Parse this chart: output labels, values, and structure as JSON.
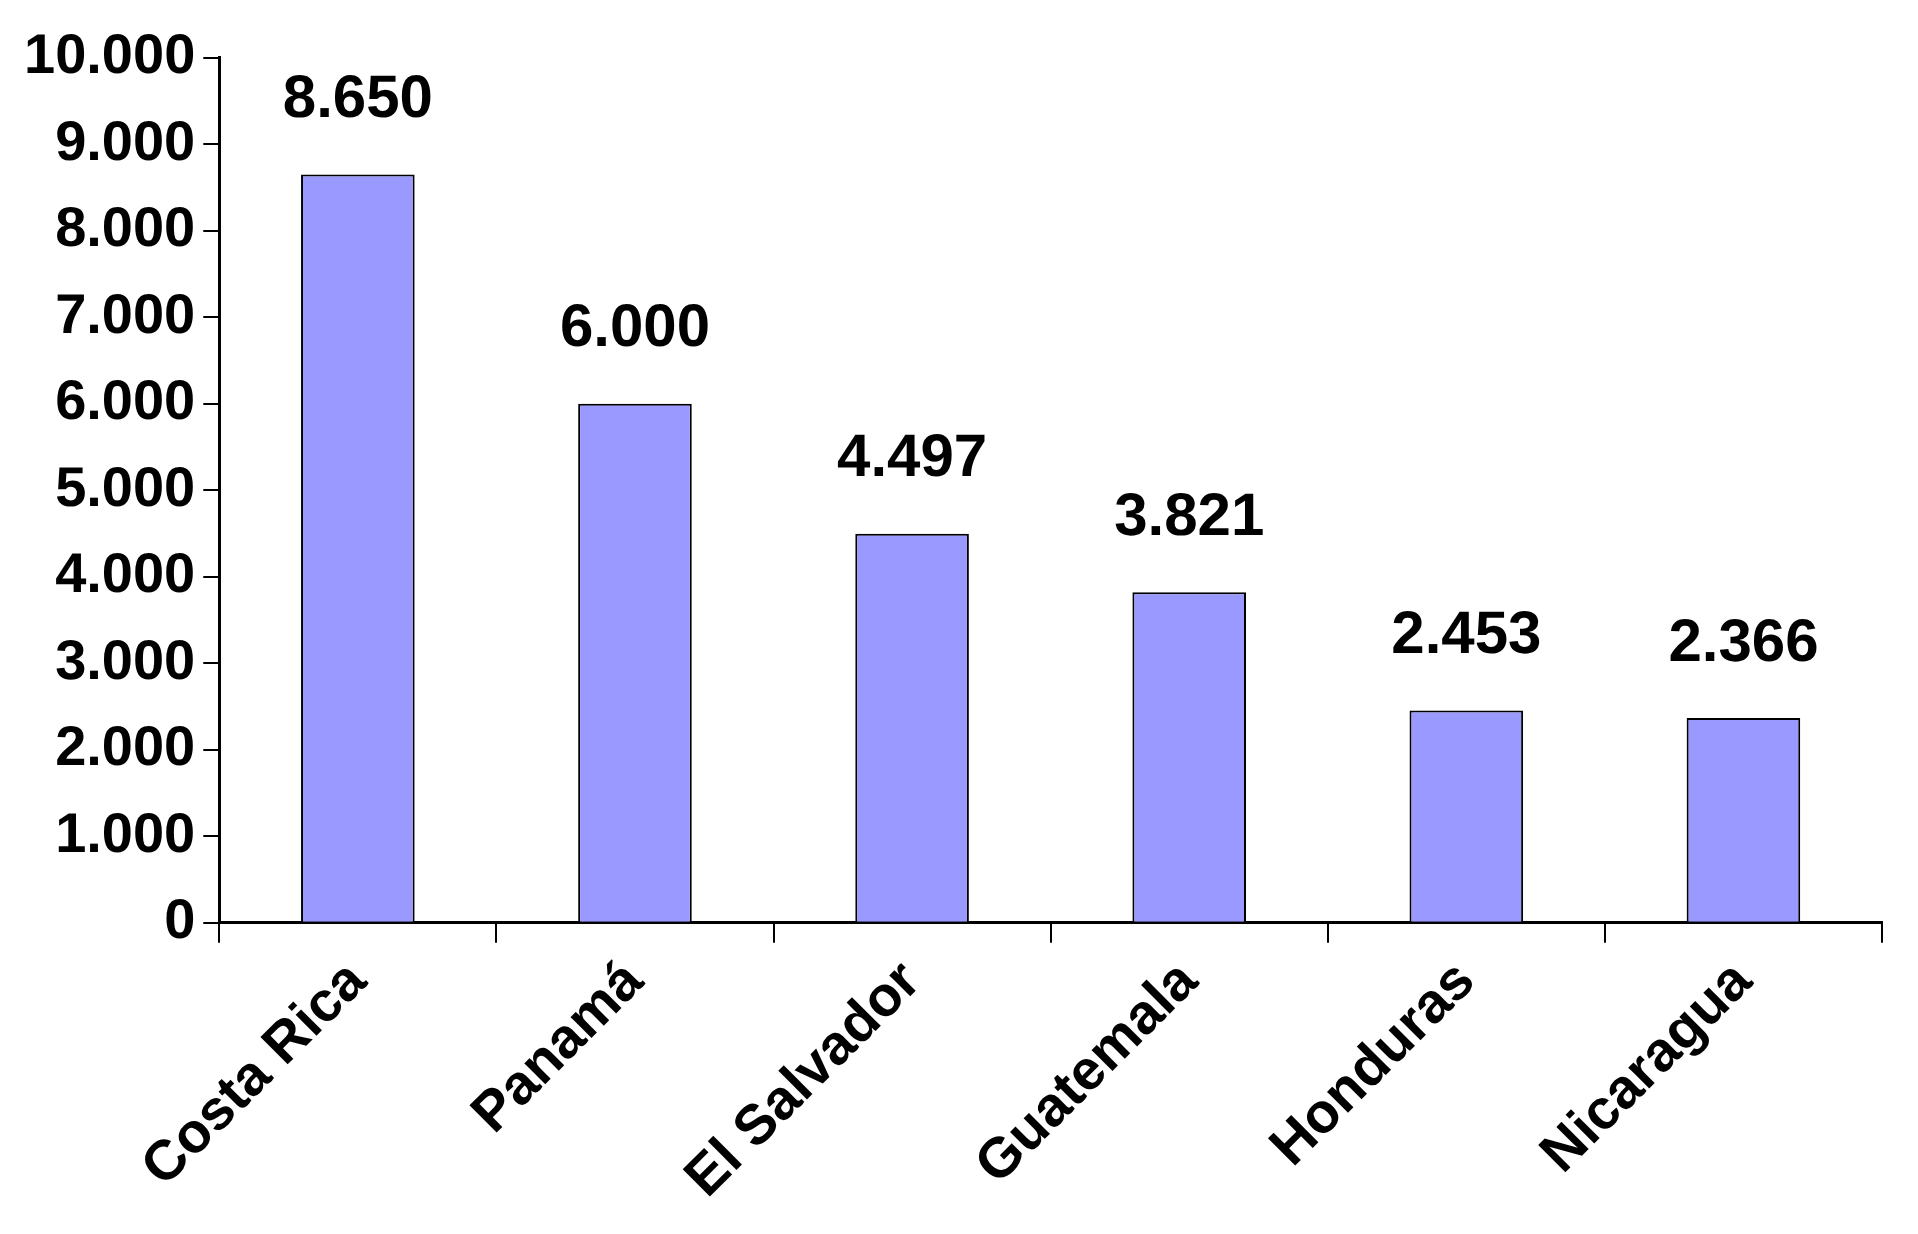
{
  "chart_data": {
    "type": "bar",
    "categories": [
      "Costa Rica",
      "Panamá",
      "El Salvador",
      "Guatemala",
      "Honduras",
      "Nicaragua"
    ],
    "values": [
      8650,
      6000,
      4497,
      3821,
      2453,
      2366
    ],
    "value_labels": [
      "8.650",
      "6.000",
      "4.497",
      "3.821",
      "2.453",
      "2.366"
    ],
    "color": "#9999ff",
    "ylim": [
      0,
      10000
    ],
    "yticks": [
      {
        "value": 0,
        "label": "0"
      },
      {
        "value": 1000,
        "label": "1.000"
      },
      {
        "value": 2000,
        "label": "2.000"
      },
      {
        "value": 3000,
        "label": "3.000"
      },
      {
        "value": 4000,
        "label": "4.000"
      },
      {
        "value": 5000,
        "label": "5.000"
      },
      {
        "value": 6000,
        "label": "6.000"
      },
      {
        "value": 7000,
        "label": "7.000"
      },
      {
        "value": 8000,
        "label": "8.000"
      },
      {
        "value": 9000,
        "label": "9.000"
      },
      {
        "value": 10000,
        "label": "10.000"
      }
    ],
    "grid": false,
    "legend": false
  }
}
